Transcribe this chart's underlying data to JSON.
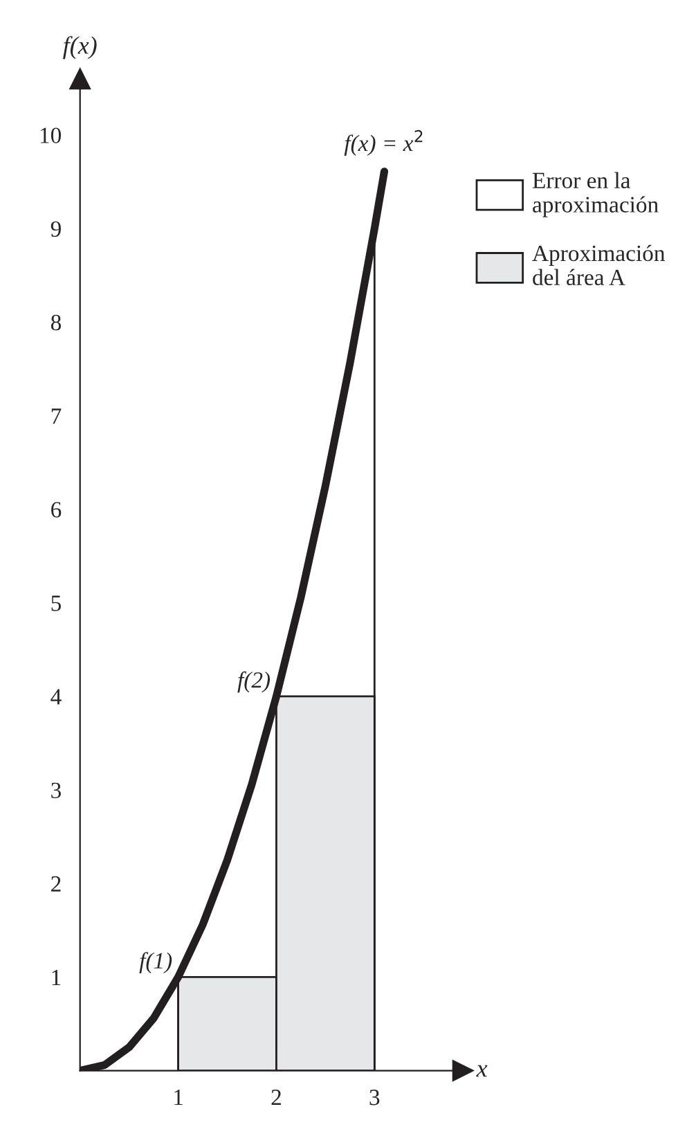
{
  "chart_data": {
    "type": "line",
    "xlabel": "x",
    "ylabel": "f(x)",
    "xlim": [
      0,
      3.9
    ],
    "ylim": [
      0,
      10.6
    ],
    "xticks": [
      1,
      2,
      3
    ],
    "yticks": [
      1,
      2,
      3,
      4,
      5,
      6,
      7,
      8,
      9,
      10
    ],
    "grid": false,
    "legend": "right",
    "series": [
      {
        "type": "area",
        "name": "Error en la\naproximación",
        "color": "#ffffff",
        "x": [
          1,
          1.25,
          1.5,
          1.75,
          2,
          2.25,
          2.5,
          2.75,
          3
        ],
        "values": [
          1,
          1.56,
          2.25,
          3.06,
          4,
          5.06,
          6.25,
          7.56,
          9
        ]
      },
      {
        "type": "histogram",
        "name": "Aproximación\ndel área A",
        "color": "#e6e7e8",
        "bins": [
          1,
          2,
          3
        ],
        "values": [
          1,
          4
        ]
      },
      {
        "color": "#231f20",
        "x": [
          0,
          0.25,
          0.5,
          0.75,
          1,
          1.25,
          1.5,
          1.75,
          2,
          2.25,
          2.5,
          2.75,
          3,
          3.1
        ],
        "values": [
          0,
          0.06,
          0.25,
          0.56,
          1,
          1.56,
          2.25,
          3.06,
          4,
          5.06,
          6.25,
          7.56,
          9,
          9.61
        ]
      }
    ],
    "annotations": [
      {
        "text": "f(x) = x$^{2}$",
        "x": 3.1,
        "y": 9.61
      },
      {
        "text": "f(1)",
        "x": 1,
        "y": 1
      },
      {
        "text": "f(2)",
        "x": 2,
        "y": 4
      }
    ]
  }
}
